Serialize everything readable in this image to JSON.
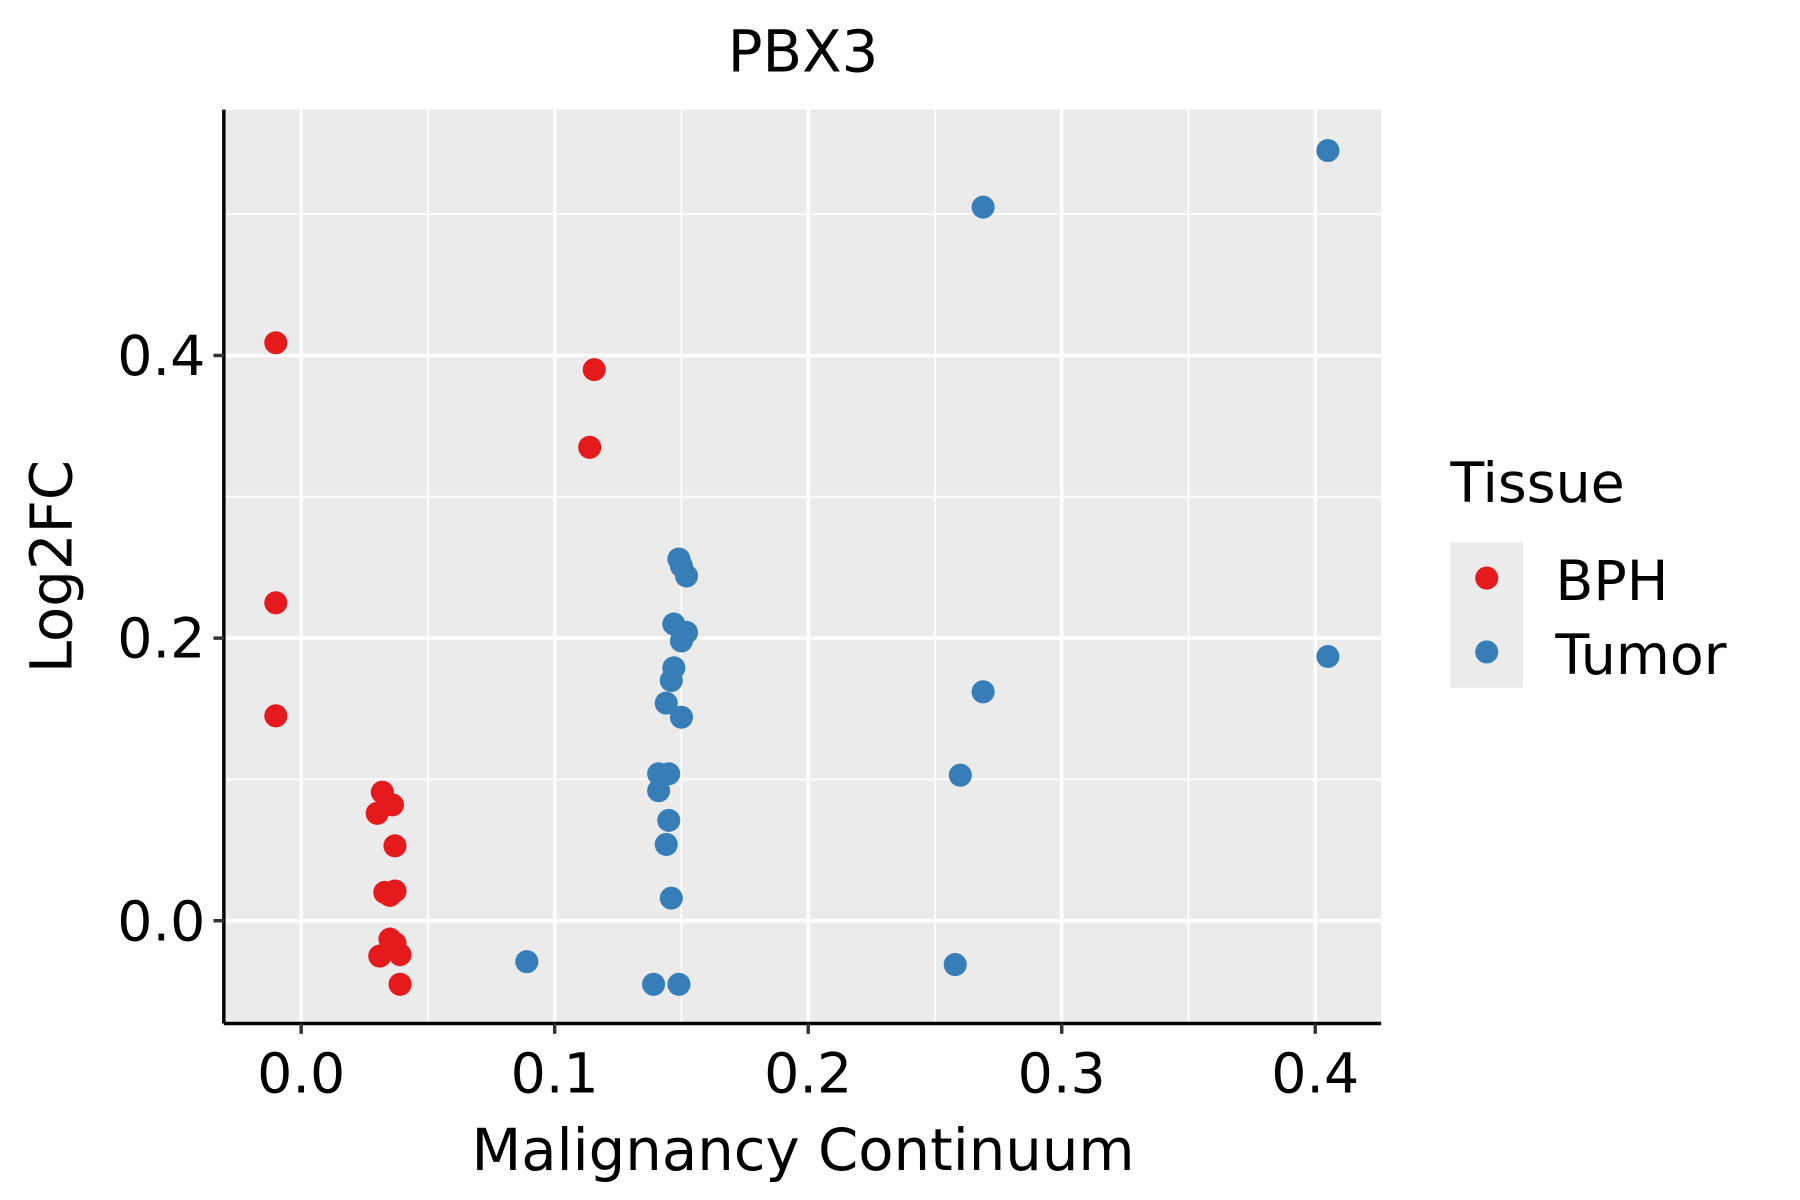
{
  "chart_data": {
    "type": "scatter",
    "title": "PBX3",
    "xlabel": "Malignancy Continuum",
    "ylabel": "Log2FC",
    "xlim": [
      -0.0305,
      0.426
    ],
    "ylim": [
      -0.0727,
      0.574
    ],
    "xticks": [
      0.0,
      0.1,
      0.2,
      0.3,
      0.4
    ],
    "xtick_labels": [
      "0.0",
      "0.1",
      "0.2",
      "0.3",
      "0.4"
    ],
    "yticks": [
      0.0,
      0.2,
      0.4
    ],
    "ytick_labels": [
      "0.0",
      "0.2",
      "0.4"
    ],
    "grid": true,
    "legend": {
      "title": "Tissue",
      "position": "right"
    },
    "series": [
      {
        "name": "BPH",
        "color": "#E41A1C",
        "points": [
          [
            -0.01,
            0.409
          ],
          [
            -0.01,
            0.225
          ],
          [
            -0.01,
            0.145
          ],
          [
            0.1156,
            0.39
          ],
          [
            0.1138,
            0.335
          ],
          [
            0.032,
            0.091
          ],
          [
            0.036,
            0.082
          ],
          [
            0.03,
            0.076
          ],
          [
            0.037,
            0.053
          ],
          [
            0.033,
            0.02
          ],
          [
            0.037,
            0.021
          ],
          [
            0.035,
            0.018
          ],
          [
            0.035,
            -0.013
          ],
          [
            0.037,
            -0.016
          ],
          [
            0.031,
            -0.025
          ],
          [
            0.039,
            -0.024
          ],
          [
            0.039,
            -0.045
          ]
        ]
      },
      {
        "name": "Tumor",
        "color": "#377EB8",
        "points": [
          [
            0.405,
            0.545
          ],
          [
            0.269,
            0.505
          ],
          [
            0.405,
            0.187
          ],
          [
            0.269,
            0.162
          ],
          [
            0.26,
            0.103
          ],
          [
            0.258,
            -0.031
          ],
          [
            0.089,
            -0.029
          ],
          [
            0.139,
            -0.045
          ],
          [
            0.149,
            -0.045
          ],
          [
            0.149,
            0.256
          ],
          [
            0.15,
            0.251
          ],
          [
            0.152,
            0.244
          ],
          [
            0.147,
            0.21
          ],
          [
            0.152,
            0.204
          ],
          [
            0.15,
            0.198
          ],
          [
            0.147,
            0.179
          ],
          [
            0.146,
            0.17
          ],
          [
            0.144,
            0.154
          ],
          [
            0.15,
            0.144
          ],
          [
            0.141,
            0.104
          ],
          [
            0.145,
            0.104
          ],
          [
            0.141,
            0.092
          ],
          [
            0.145,
            0.071
          ],
          [
            0.144,
            0.054
          ],
          [
            0.146,
            0.016
          ]
        ]
      }
    ]
  }
}
